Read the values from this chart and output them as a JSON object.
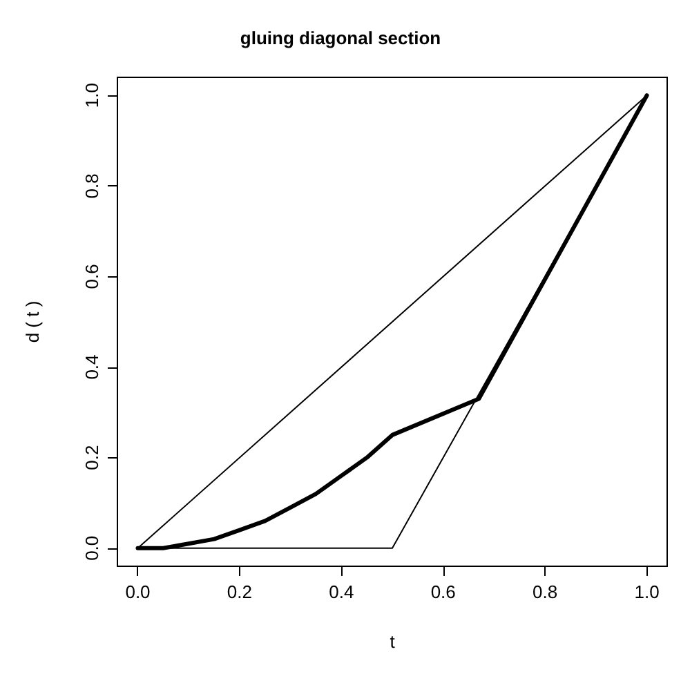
{
  "chart_data": {
    "type": "line",
    "title": "gluing diagonal section",
    "xlabel": "t",
    "ylabel": "d ( t )",
    "xlim": [
      -0.04,
      1.04
    ],
    "ylim": [
      -0.04,
      1.04
    ],
    "xticks": [
      {
        "value": 0,
        "label": "0.0"
      },
      {
        "value": 0.2,
        "label": "0.2"
      },
      {
        "value": 0.4,
        "label": "0.4"
      },
      {
        "value": 0.6,
        "label": "0.6"
      },
      {
        "value": 0.8,
        "label": "0.8"
      },
      {
        "value": 1,
        "label": "1.0"
      }
    ],
    "yticks": [
      {
        "value": 0,
        "label": "0.0"
      },
      {
        "value": 0.2,
        "label": "0.2"
      },
      {
        "value": 0.4,
        "label": "0.4"
      },
      {
        "value": 0.6,
        "label": "0.6"
      },
      {
        "value": 0.8,
        "label": "0.8"
      },
      {
        "value": 1,
        "label": "1.0"
      }
    ],
    "grid": false,
    "marker": "none",
    "line_style": "solid",
    "series": [
      {
        "color": "#000000",
        "x": [
          0,
          1
        ],
        "values": [
          0,
          1
        ]
      },
      {
        "color": "#000000",
        "x": [
          0,
          0.5,
          1
        ],
        "values": [
          0,
          0,
          1
        ]
      },
      {
        "color": "#000000",
        "x": [
          0,
          0.05,
          0.1,
          0.15,
          0.2,
          0.25,
          0.3,
          0.35,
          0.4,
          0.45,
          0.5,
          0.67,
          1
        ],
        "values": [
          0,
          0,
          0.01,
          0.02,
          0.04,
          0.06,
          0.09,
          0.12,
          0.16,
          0.2,
          0.25,
          0.33,
          1
        ]
      }
    ]
  }
}
